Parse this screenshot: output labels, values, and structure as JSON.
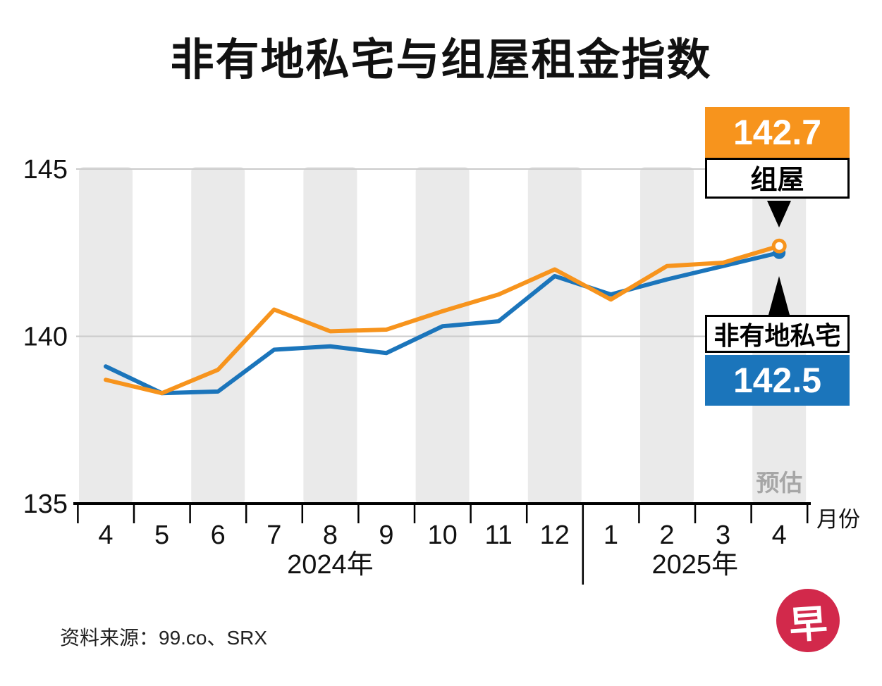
{
  "title": "非有地私宅与组屋租金指数",
  "chart_data": {
    "type": "line",
    "title": "非有地私宅与组屋租金指数",
    "x_axis_label": "月份",
    "x_tick_labels": [
      "4",
      "5",
      "6",
      "7",
      "8",
      "9",
      "10",
      "11",
      "12",
      "1",
      "2",
      "3",
      "4"
    ],
    "year_groups": [
      {
        "label": "2024年",
        "start_index": 0,
        "end_index": 8
      },
      {
        "label": "2025年",
        "start_index": 9,
        "end_index": 12
      }
    ],
    "y_ticks": [
      135,
      140,
      145
    ],
    "ylim": [
      135,
      146
    ],
    "grid": "horizontal",
    "band_shading": "alternating gray bands on months 4,6,8,10,12,2,4",
    "series": [
      {
        "name": "组屋",
        "color": "#F7941D",
        "end_marker": "open-circle",
        "final_value": 142.7,
        "values": [
          138.7,
          138.3,
          139.0,
          140.8,
          140.15,
          140.2,
          140.75,
          141.25,
          142.0,
          141.1,
          142.1,
          142.2,
          142.7
        ]
      },
      {
        "name": "非有地私宅",
        "color": "#1B75BB",
        "end_marker": "solid-circle",
        "final_value": 142.5,
        "values": [
          139.1,
          138.3,
          138.35,
          139.6,
          139.7,
          139.5,
          140.3,
          140.45,
          141.8,
          141.25,
          141.7,
          142.1,
          142.5
        ]
      }
    ],
    "estimate_label": "预估"
  },
  "annotations": {
    "hdb_value": "142.7",
    "hdb_name": "组屋",
    "private_name": "非有地私宅",
    "private_value": "142.5"
  },
  "footer": {
    "source": "资料来源：99.co、SRX"
  },
  "logo": {
    "text": "早",
    "bg_color": "#D2294B"
  },
  "colors": {
    "hdb": "#F7941D",
    "private": "#1B75BB",
    "band": "#EAEAEA",
    "grid": "#CBCBCB",
    "axis": "#000000",
    "estimate_text": "#A6A6A6"
  }
}
